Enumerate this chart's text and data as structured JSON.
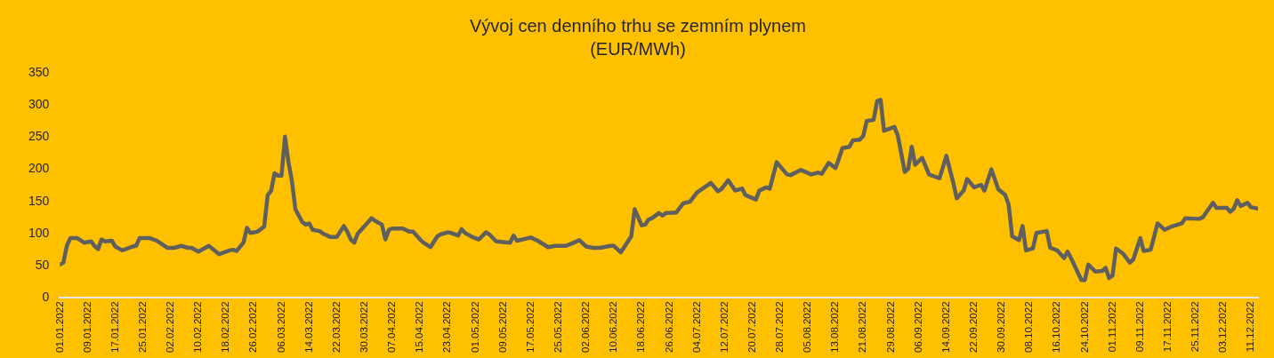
{
  "chart_data": {
    "type": "line",
    "title": "Vývoj cen denního trhu se zemním plynem",
    "subtitle": "(EUR/MWh)",
    "xlim": [
      "2022-01-01",
      "2022-12-13"
    ],
    "xticks": [
      {
        "value": "2022-01-01",
        "label": "01.01.2022"
      },
      {
        "value": "2022-01-09",
        "label": "09.01.2022"
      },
      {
        "value": "2022-01-17",
        "label": "17.01.2022"
      },
      {
        "value": "2022-01-25",
        "label": "25.01.2022"
      },
      {
        "value": "2022-02-02",
        "label": "02.02.2022"
      },
      {
        "value": "2022-02-10",
        "label": "10.02.2022"
      },
      {
        "value": "2022-02-18",
        "label": "18.02.2022"
      },
      {
        "value": "2022-02-26",
        "label": "26.02.2022"
      },
      {
        "value": "2022-03-06",
        "label": "06.03.2022"
      },
      {
        "value": "2022-03-14",
        "label": "14.03.2022"
      },
      {
        "value": "2022-03-22",
        "label": "22.03.2022"
      },
      {
        "value": "2022-03-30",
        "label": "30.03.2022"
      },
      {
        "value": "2022-04-07",
        "label": "07.04.2022"
      },
      {
        "value": "2022-04-15",
        "label": "15.04.2022"
      },
      {
        "value": "2022-04-23",
        "label": "23.04.2022"
      },
      {
        "value": "2022-05-01",
        "label": "01.05.2022"
      },
      {
        "value": "2022-05-09",
        "label": "09.05.2022"
      },
      {
        "value": "2022-05-17",
        "label": "17.05.2022"
      },
      {
        "value": "2022-05-25",
        "label": "25.05.2022"
      },
      {
        "value": "2022-06-02",
        "label": "02.06.2022"
      },
      {
        "value": "2022-06-10",
        "label": "10.06.2022"
      },
      {
        "value": "2022-06-18",
        "label": "18.06.2022"
      },
      {
        "value": "2022-06-26",
        "label": "26.06.2022"
      },
      {
        "value": "2022-07-04",
        "label": "04.07.2022"
      },
      {
        "value": "2022-07-12",
        "label": "12.07.2022"
      },
      {
        "value": "2022-07-20",
        "label": "20.07.2022"
      },
      {
        "value": "2022-07-28",
        "label": "28.07.2022"
      },
      {
        "value": "2022-08-05",
        "label": "05.08.2022"
      },
      {
        "value": "2022-08-13",
        "label": "13.08.2022"
      },
      {
        "value": "2022-08-21",
        "label": "21.08.2022"
      },
      {
        "value": "2022-08-29",
        "label": "29.08.2022"
      },
      {
        "value": "2022-09-06",
        "label": "06.09.2022"
      },
      {
        "value": "2022-09-14",
        "label": "14.09.2022"
      },
      {
        "value": "2022-09-22",
        "label": "22.09.2022"
      },
      {
        "value": "2022-09-30",
        "label": "30.09.2022"
      },
      {
        "value": "2022-10-08",
        "label": "08.10.2022"
      },
      {
        "value": "2022-10-16",
        "label": "16.10.2022"
      },
      {
        "value": "2022-10-24",
        "label": "24.10.2022"
      },
      {
        "value": "2022-11-01",
        "label": "01.11.2022"
      },
      {
        "value": "2022-11-09",
        "label": "09.11.2022"
      },
      {
        "value": "2022-11-17",
        "label": "17.11.2022"
      },
      {
        "value": "2022-11-25",
        "label": "25.11.2022"
      },
      {
        "value": "2022-12-03",
        "label": "03.12.2022"
      },
      {
        "value": "2022-12-11",
        "label": "11.12.2022"
      }
    ],
    "ylim": [
      0,
      350
    ],
    "yticks": [
      0,
      50,
      100,
      150,
      200,
      250,
      300,
      350
    ],
    "x": [
      "2022-01-01",
      "2022-01-02",
      "2022-01-03",
      "2022-01-04",
      "2022-01-06",
      "2022-01-08",
      "2022-01-10",
      "2022-01-11",
      "2022-01-12",
      "2022-01-13",
      "2022-01-14",
      "2022-01-16",
      "2022-01-17",
      "2022-01-19",
      "2022-01-22",
      "2022-01-23",
      "2022-01-24",
      "2022-01-27",
      "2022-01-29",
      "2022-02-01",
      "2022-02-03",
      "2022-02-05",
      "2022-02-07",
      "2022-02-08",
      "2022-02-10",
      "2022-02-13",
      "2022-02-16",
      "2022-02-19",
      "2022-02-20",
      "2022-02-21",
      "2022-02-23",
      "2022-02-24",
      "2022-02-25",
      "2022-02-27",
      "2022-03-01",
      "2022-03-02",
      "2022-03-03",
      "2022-03-04",
      "2022-03-05",
      "2022-03-06",
      "2022-03-07",
      "2022-03-08",
      "2022-03-09",
      "2022-03-10",
      "2022-03-12",
      "2022-03-13",
      "2022-03-14",
      "2022-03-15",
      "2022-03-17",
      "2022-03-18",
      "2022-03-20",
      "2022-03-22",
      "2022-03-24",
      "2022-03-25",
      "2022-03-26",
      "2022-03-27",
      "2022-03-28",
      "2022-04-01",
      "2022-04-02",
      "2022-04-04",
      "2022-04-05",
      "2022-04-06",
      "2022-04-07",
      "2022-04-10",
      "2022-04-12",
      "2022-04-13",
      "2022-04-15",
      "2022-04-16",
      "2022-04-18",
      "2022-04-20",
      "2022-04-21",
      "2022-04-23",
      "2022-04-24",
      "2022-04-26",
      "2022-04-27",
      "2022-04-28",
      "2022-04-30",
      "2022-05-02",
      "2022-05-04",
      "2022-05-05",
      "2022-05-07",
      "2022-05-11",
      "2022-05-12",
      "2022-05-13",
      "2022-05-17",
      "2022-05-19",
      "2022-05-22",
      "2022-05-24",
      "2022-05-27",
      "2022-05-29",
      "2022-05-31",
      "2022-06-02",
      "2022-06-04",
      "2022-06-06",
      "2022-06-09",
      "2022-06-10",
      "2022-06-12",
      "2022-06-15",
      "2022-06-16",
      "2022-06-18",
      "2022-06-19",
      "2022-06-20",
      "2022-06-21",
      "2022-06-23",
      "2022-06-24",
      "2022-06-25",
      "2022-06-28",
      "2022-06-30",
      "2022-07-02",
      "2022-07-04",
      "2022-07-08",
      "2022-07-10",
      "2022-07-11",
      "2022-07-13",
      "2022-07-15",
      "2022-07-17",
      "2022-07-18",
      "2022-07-21",
      "2022-07-22",
      "2022-07-24",
      "2022-07-25",
      "2022-07-27",
      "2022-07-30",
      "2022-07-31",
      "2022-08-03",
      "2022-08-06",
      "2022-08-08",
      "2022-08-09",
      "2022-08-11",
      "2022-08-13",
      "2022-08-15",
      "2022-08-17",
      "2022-08-18",
      "2022-08-20",
      "2022-08-21",
      "2022-08-22",
      "2022-08-24",
      "2022-08-25",
      "2022-08-26",
      "2022-08-27",
      "2022-08-30",
      "2022-08-31",
      "2022-09-02",
      "2022-09-03",
      "2022-09-04",
      "2022-09-05",
      "2022-09-07",
      "2022-09-09",
      "2022-09-12",
      "2022-09-13",
      "2022-09-14",
      "2022-09-16",
      "2022-09-17",
      "2022-09-19",
      "2022-09-20",
      "2022-09-22",
      "2022-09-24",
      "2022-09-25",
      "2022-09-27",
      "2022-09-29",
      "2022-10-01",
      "2022-10-02",
      "2022-10-03",
      "2022-10-05",
      "2022-10-06",
      "2022-10-07",
      "2022-10-09",
      "2022-10-10",
      "2022-10-13",
      "2022-10-14",
      "2022-10-16",
      "2022-10-18",
      "2022-10-19",
      "2022-10-20",
      "2022-10-23",
      "2022-10-24",
      "2022-10-25",
      "2022-10-27",
      "2022-10-29",
      "2022-10-30",
      "2022-10-31",
      "2022-11-01",
      "2022-11-02",
      "2022-11-04",
      "2022-11-06",
      "2022-11-07",
      "2022-11-09",
      "2022-11-10",
      "2022-11-12",
      "2022-11-14",
      "2022-11-16",
      "2022-11-18",
      "2022-11-21",
      "2022-11-22",
      "2022-11-26",
      "2022-11-27",
      "2022-11-30",
      "2022-12-01",
      "2022-12-04",
      "2022-12-05",
      "2022-12-06",
      "2022-12-07",
      "2022-12-08",
      "2022-12-10",
      "2022-12-11",
      "2022-12-13"
    ],
    "series": [
      {
        "color": "#5f5f5f",
        "values": [
          52,
          55,
          81,
          93,
          93,
          86,
          88,
          81,
          76,
          91,
          88,
          89,
          80,
          74,
          80,
          81,
          93,
          93,
          89,
          78,
          78,
          81,
          78,
          78,
          72,
          81,
          68,
          74,
          75,
          73,
          86,
          109,
          101,
          103,
          111,
          160,
          167,
          194,
          190,
          190,
          251,
          211,
          182,
          138,
          118,
          114,
          116,
          106,
          104,
          100,
          95,
          95,
          112,
          103,
          91,
          86,
          100,
          124,
          120,
          114,
          91,
          106,
          108,
          108,
          103,
          103,
          91,
          86,
          79,
          96,
          99,
          102,
          101,
          97,
          107,
          101,
          95,
          91,
          102,
          99,
          88,
          86,
          97,
          89,
          94,
          89,
          79,
          81,
          81,
          85,
          90,
          80,
          78,
          78,
          81,
          81,
          71,
          96,
          138,
          113,
          114,
          122,
          124,
          132,
          128,
          132,
          133,
          147,
          150,
          164,
          179,
          166,
          169,
          183,
          167,
          170,
          160,
          153,
          167,
          172,
          170,
          211,
          192,
          191,
          199,
          192,
          195,
          193,
          210,
          202,
          233,
          235,
          245,
          246,
          252,
          275,
          277,
          306,
          308,
          260,
          266,
          252,
          196,
          201,
          235,
          207,
          218,
          192,
          186,
          203,
          221,
          179,
          155,
          167,
          185,
          172,
          176,
          167,
          200,
          169,
          160,
          145,
          96,
          90,
          112,
          74,
          77,
          101,
          104,
          78,
          74,
          62,
          72,
          62,
          28,
          28,
          52,
          41,
          42,
          47,
          31,
          35,
          77,
          69,
          55,
          60,
          93,
          73,
          75,
          116,
          106,
          111,
          116,
          124,
          123,
          125,
          148,
          140,
          140,
          134,
          139,
          152,
          143,
          148,
          141,
          139
        ]
      }
    ]
  }
}
